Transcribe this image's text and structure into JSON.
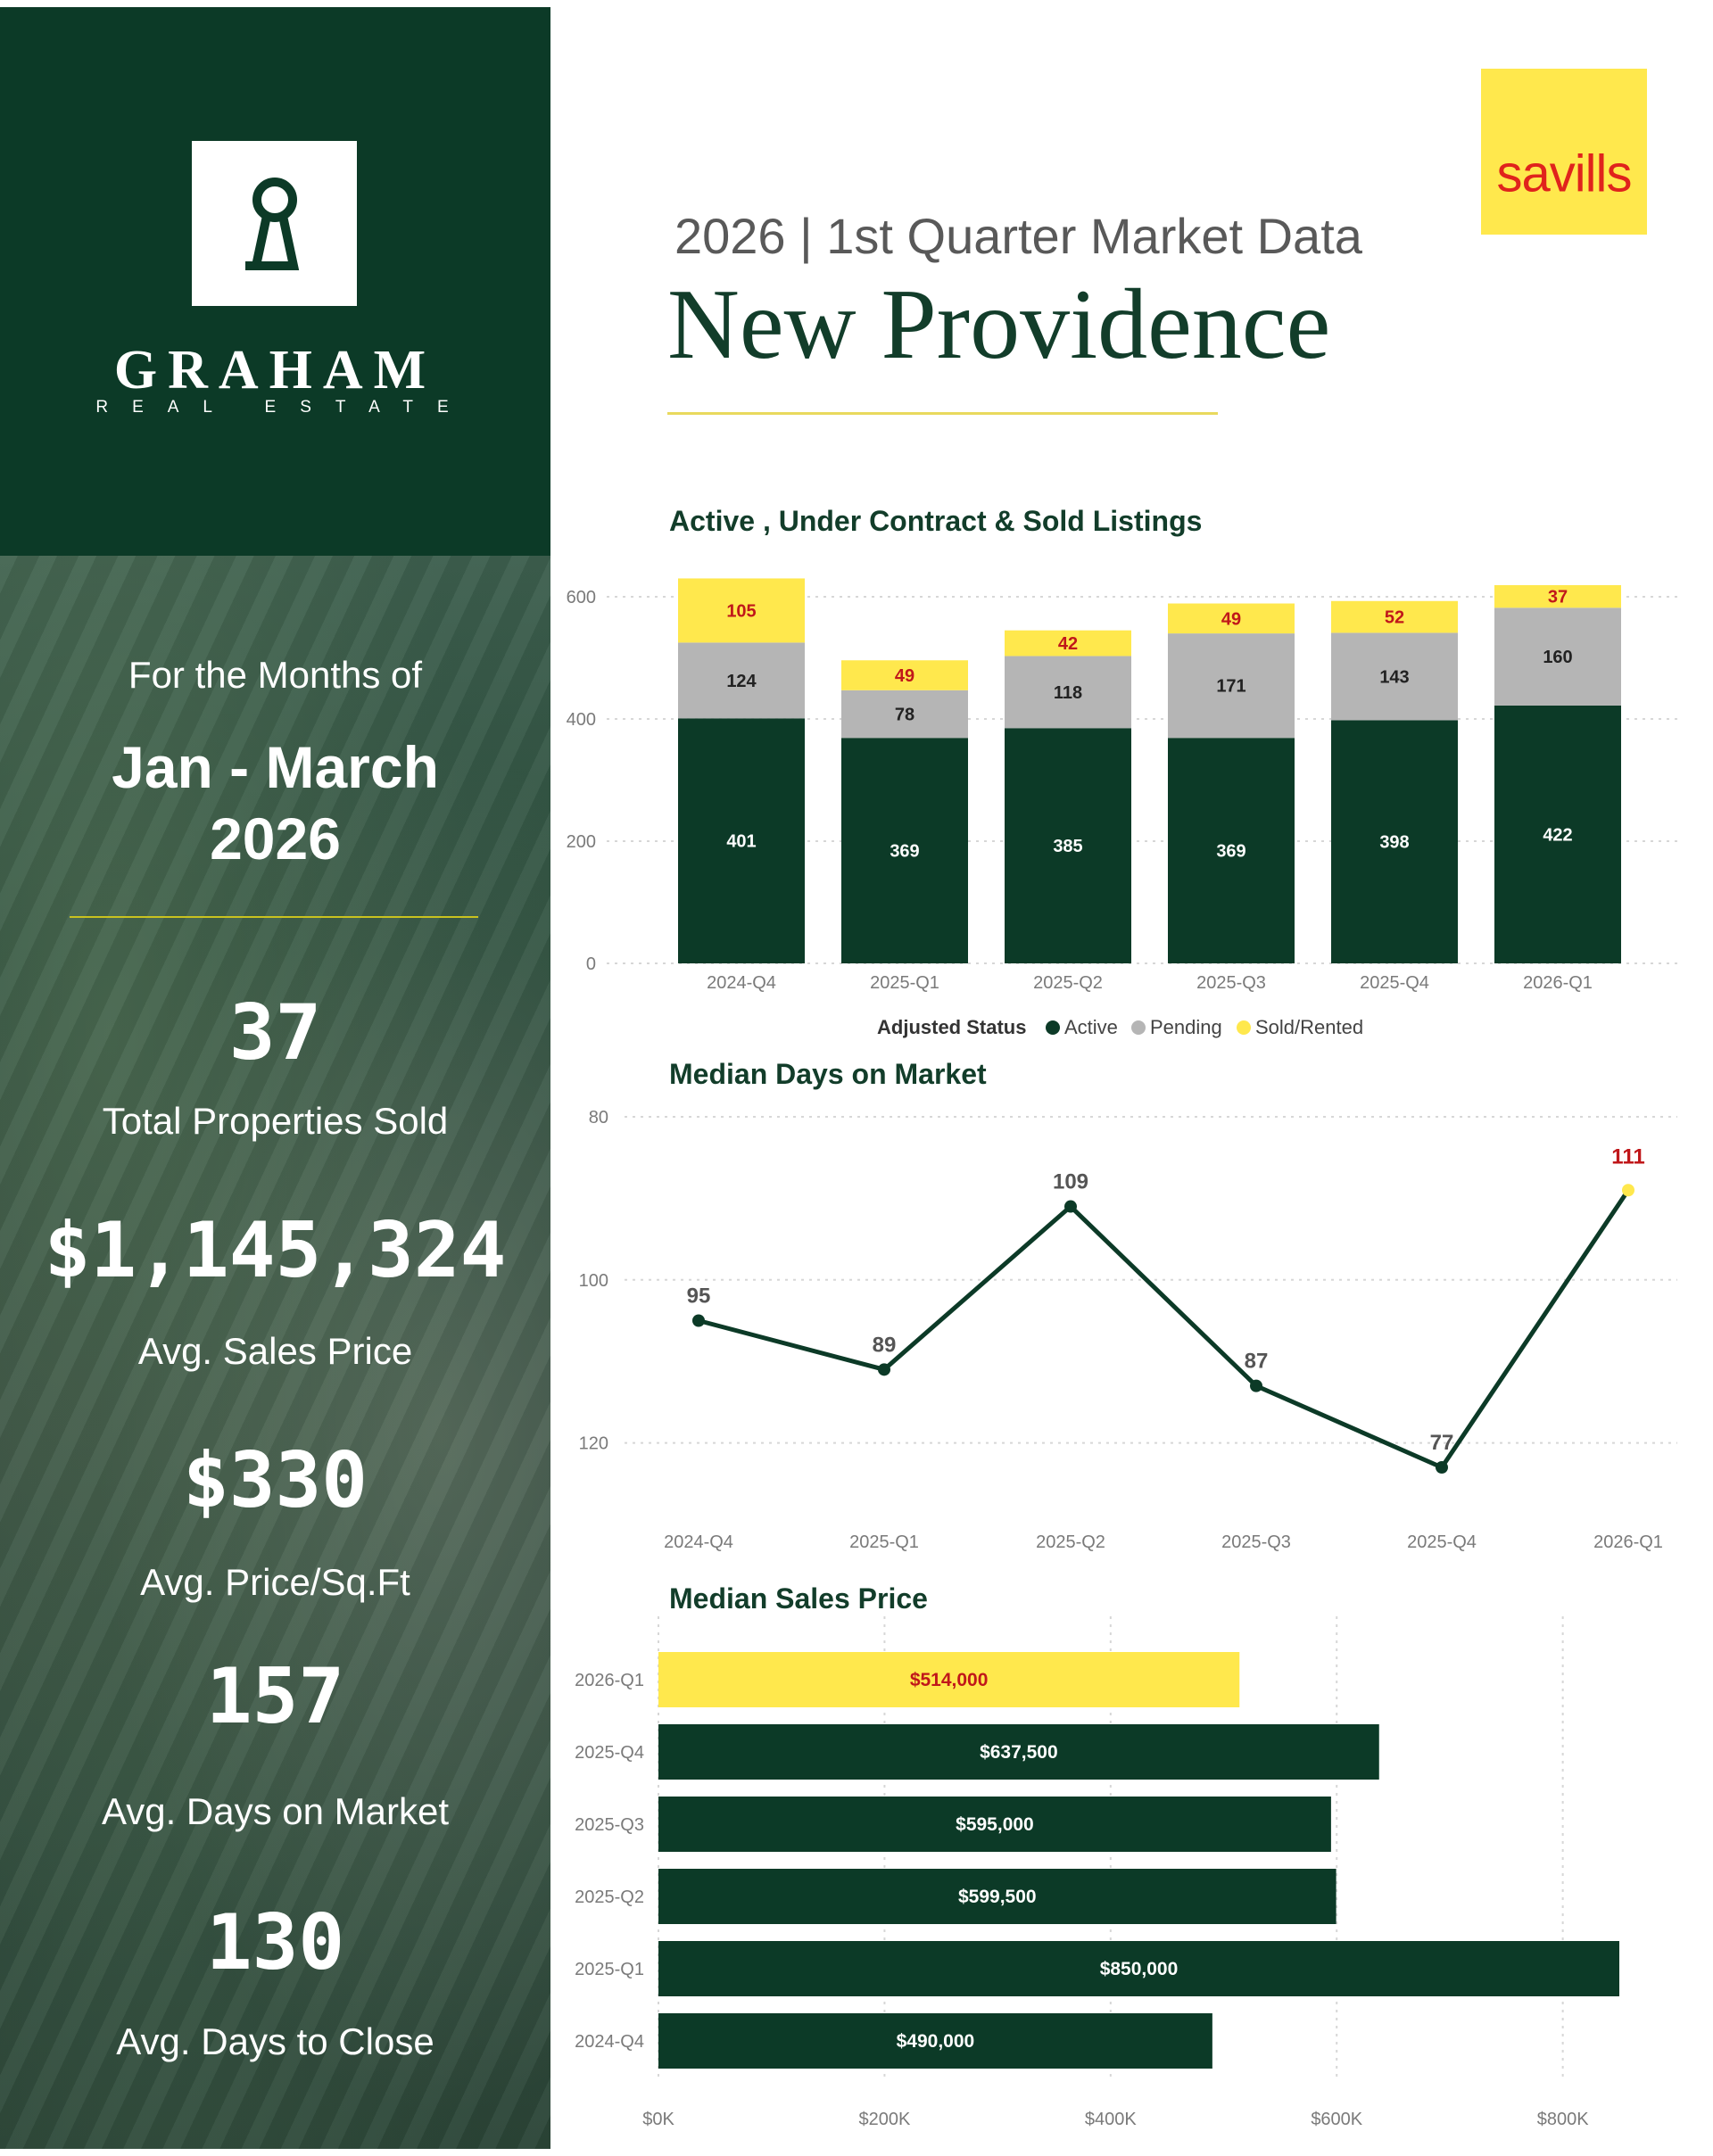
{
  "brand": {
    "name": "GRAHAM",
    "sub": "REAL ESTATE",
    "partner": "savills"
  },
  "colors": {
    "dark_green": "#0c3a27",
    "gray": "#b5b5b5",
    "yellow": "#ffe84d",
    "red_label": "#c0171a"
  },
  "header": {
    "subtitle": "2026 | 1st  Quarter Market Data",
    "title": "New Providence"
  },
  "left_panel": {
    "months_label": "For the Months of",
    "period_line1": "Jan - March",
    "period_line2": "2026",
    "stats": [
      {
        "value": "37",
        "label": "Total Properties Sold"
      },
      {
        "value": "$1,145,324",
        "label": "Avg. Sales Price"
      },
      {
        "value": "$330",
        "label": "Avg. Price/Sq.Ft"
      },
      {
        "value": "157",
        "label": "Avg. Days on Market"
      },
      {
        "value": "130",
        "label": "Avg. Days to Close"
      }
    ]
  },
  "chart_data": [
    {
      "type": "bar",
      "stacked": true,
      "title": "Active , Under Contract & Sold Listings",
      "categories": [
        "2024-Q4",
        "2025-Q1",
        "2025-Q2",
        "2025-Q3",
        "2025-Q4",
        "2026-Q1"
      ],
      "series": [
        {
          "name": "Active",
          "values": [
            401,
            369,
            385,
            369,
            398,
            422
          ]
        },
        {
          "name": "Pending",
          "values": [
            124,
            78,
            118,
            171,
            143,
            160
          ]
        },
        {
          "name": "Sold/Rented",
          "values": [
            105,
            49,
            42,
            49,
            52,
            37
          ]
        }
      ],
      "ylim": [
        0,
        600
      ],
      "yticks": [
        "0",
        "200",
        "400",
        "600"
      ],
      "legend_title": "Adjusted Status",
      "legend": [
        "Active",
        "Pending",
        "Sold/Rented"
      ],
      "legend_position": "bottom-center"
    },
    {
      "type": "line",
      "title": "Median Days on Market",
      "categories": [
        "2024-Q4",
        "2025-Q1",
        "2025-Q2",
        "2025-Q3",
        "2025-Q4",
        "2026-Q1"
      ],
      "values": [
        95,
        89,
        109,
        87,
        77,
        111
      ],
      "ylim": [
        74,
        120
      ],
      "yticks": [
        "80",
        "100",
        "120"
      ],
      "highlight": "2026-Q1"
    },
    {
      "type": "bar",
      "orientation": "horizontal",
      "title": "Median Sales Price",
      "categories": [
        "2026-Q1",
        "2025-Q4",
        "2025-Q3",
        "2025-Q2",
        "2025-Q1",
        "2024-Q4"
      ],
      "values": [
        514000,
        637500,
        595000,
        599500,
        850000,
        490000
      ],
      "value_labels": [
        "$514,000",
        "$637,500",
        "$595,000",
        "$599,500",
        "$850,000",
        "$490,000"
      ],
      "xlim": [
        0,
        850000
      ],
      "xticks": [
        "$0K",
        "$200K",
        "$400K",
        "$600K",
        "$800K"
      ],
      "highlight": "2026-Q1"
    }
  ]
}
